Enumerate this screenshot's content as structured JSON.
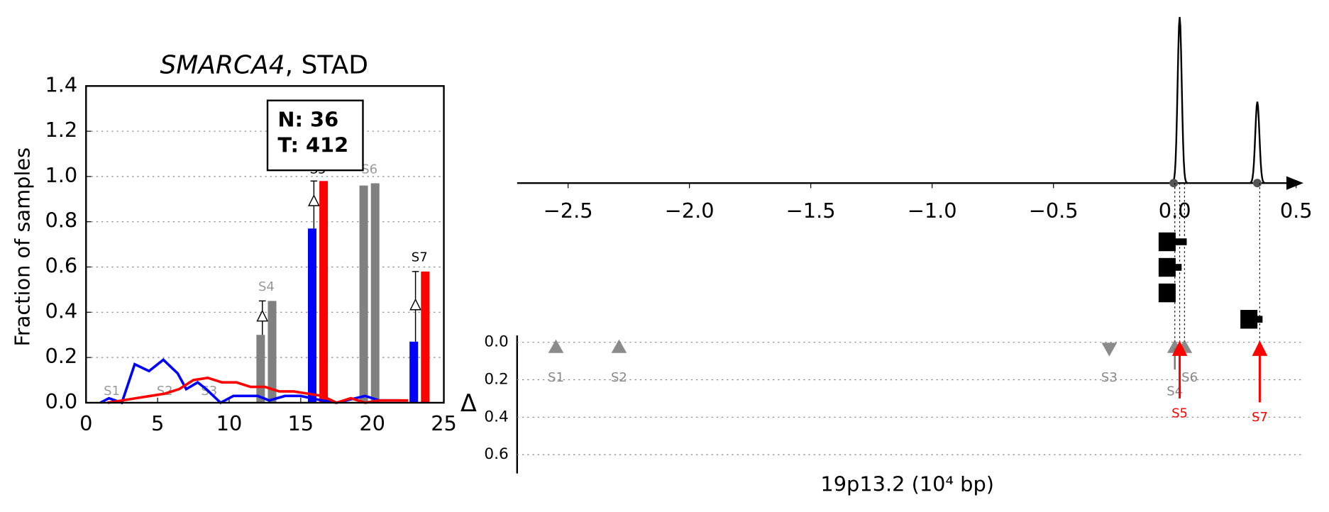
{
  "chart_data": [
    {
      "type": "bar",
      "title_gene": "SMARCA4",
      "title_rest": ", STAD",
      "ylabel": "Fraction of samples",
      "xlim": [
        0,
        25
      ],
      "ylim": [
        0,
        1.4
      ],
      "xticks": [
        0,
        5,
        10,
        15,
        20,
        25
      ],
      "yticks": [
        {
          "value": 0,
          "label": "0.0"
        },
        {
          "value": 0.2,
          "label": "0.2"
        },
        {
          "value": 0.4,
          "label": "0.4"
        },
        {
          "value": 0.6,
          "label": "0.6"
        },
        {
          "value": 0.8,
          "label": "0.8"
        },
        {
          "value": 1,
          "label": "1.0"
        },
        {
          "value": 1.2,
          "label": "1.2"
        },
        {
          "value": 1.4,
          "label": "1.4"
        }
      ],
      "grid": true,
      "annotation_box": [
        "N: 36",
        "T: 412"
      ],
      "lines": [
        {
          "color": "#0000ff",
          "x": [
            1,
            1.6,
            2.5,
            3.4,
            4.4,
            5.4,
            6.4,
            7.0,
            7.8,
            8.4,
            9.4,
            10.3,
            12.0,
            12.8,
            13.9,
            15.0,
            16.5,
            17.5,
            19.5,
            20.5,
            22.0
          ],
          "values": [
            0,
            0.02,
            0,
            0.17,
            0.14,
            0.19,
            0.13,
            0.06,
            0.09,
            0.06,
            0,
            0.03,
            0.03,
            0.01,
            0.03,
            0.03,
            0.01,
            0,
            0.03,
            0.01,
            0.01
          ]
        },
        {
          "color": "#ff0000",
          "x": [
            1.5,
            2.5,
            3.5,
            4.5,
            5.5,
            6.5,
            7.5,
            8.5,
            9.5,
            10.5,
            11.5,
            12.5,
            13.5,
            14.5,
            15.5,
            16.5,
            17.5,
            18.5,
            19.5,
            20.5,
            21.5,
            22.5
          ],
          "values": [
            0,
            0.01,
            0.02,
            0.03,
            0.04,
            0.06,
            0.1,
            0.11,
            0.09,
            0.09,
            0.07,
            0.07,
            0.05,
            0.05,
            0.04,
            0.03,
            0,
            0.02,
            0,
            0.01,
            0.01,
            0.01
          ]
        }
      ],
      "bars": [
        {
          "x": 12.2,
          "value": 0.3,
          "color": "#808080",
          "error_high": 0.45,
          "delta_at": 0.38
        },
        {
          "x": 13.0,
          "value": 0.45,
          "color": "#808080"
        },
        {
          "x": 15.8,
          "value": 0.77,
          "color": "#0000ff",
          "error_high": 0.98,
          "delta_at": 0.89
        },
        {
          "x": 16.6,
          "value": 0.98,
          "color": "#ff0000"
        },
        {
          "x": 19.4,
          "value": 0.96,
          "color": "#808080"
        },
        {
          "x": 20.2,
          "value": 0.97,
          "color": "#808080"
        },
        {
          "x": 22.9,
          "value": 0.27,
          "color": "#0000ff",
          "error_high": 0.58,
          "delta_at": 0.43
        },
        {
          "x": 23.7,
          "value": 0.58,
          "color": "#ff0000"
        }
      ],
      "sites": [
        {
          "label": "S1",
          "x": 1.8,
          "y": 0.05,
          "color": "#999999"
        },
        {
          "label": "S2",
          "x": 5.5,
          "y": 0.05,
          "color": "#999999"
        },
        {
          "label": "S3",
          "x": 8.6,
          "y": 0.05,
          "color": "#999999"
        },
        {
          "label": "S4",
          "x": 12.6,
          "y": 0.51,
          "color": "#999999"
        },
        {
          "label": "S5",
          "x": 16.2,
          "y": 1.03,
          "color": "#000000"
        },
        {
          "label": "S6",
          "x": 19.8,
          "y": 1.03,
          "color": "#999999"
        },
        {
          "label": "S7",
          "x": 23.3,
          "y": 0.64,
          "color": "#000000"
        }
      ]
    },
    {
      "type": "locus",
      "xlabel": "19p13.2 (10⁴ bp)",
      "ylabel": "Δ",
      "xlim": [
        -2.71,
        0.53
      ],
      "xticks": [
        {
          "value": -2.5,
          "label": "−2.5"
        },
        {
          "value": -2,
          "label": "−2.0"
        },
        {
          "value": -1.5,
          "label": "−1.5"
        },
        {
          "value": -1,
          "label": "−1.0"
        },
        {
          "value": -0.5,
          "label": "−0.5"
        },
        {
          "value": 0,
          "label": "0.0"
        },
        {
          "value": 0.5,
          "label": "0.5"
        }
      ],
      "ylim": [
        -0.03,
        0.7
      ],
      "yticks": [
        {
          "value": 0,
          "label": "0.0"
        },
        {
          "value": 0.2,
          "label": "0.2"
        },
        {
          "value": 0.4,
          "label": "0.4"
        },
        {
          "value": 0.6,
          "label": "0.6"
        }
      ],
      "grid": true,
      "peaks": {
        "x": [
          0.02,
          0.34
        ],
        "height": [
          1,
          0.49
        ]
      },
      "markers": [
        {
          "label": "S1",
          "x": -2.55,
          "delta": 0.03,
          "shape": "up",
          "color": "#777777"
        },
        {
          "label": "S2",
          "x": -2.29,
          "delta": 0.03,
          "shape": "up",
          "color": "#777777"
        },
        {
          "label": "S3",
          "x": -0.27,
          "delta": 0.03,
          "shape": "down",
          "color": "#777777"
        },
        {
          "label": "S4",
          "x": 0.0,
          "delta": 0.03,
          "shape": "up",
          "color": "#777777"
        },
        {
          "label": "S6",
          "x": 0.04,
          "delta": 0.03,
          "shape": "up",
          "color": "#777777"
        },
        {
          "label": "S5",
          "x": 0.02,
          "delta": 0.3,
          "shape": "arrow",
          "color": "#ff0000"
        },
        {
          "label": "S7",
          "x": 0.35,
          "delta": 0.32,
          "shape": "arrow",
          "color": "#ff0000"
        }
      ]
    }
  ]
}
